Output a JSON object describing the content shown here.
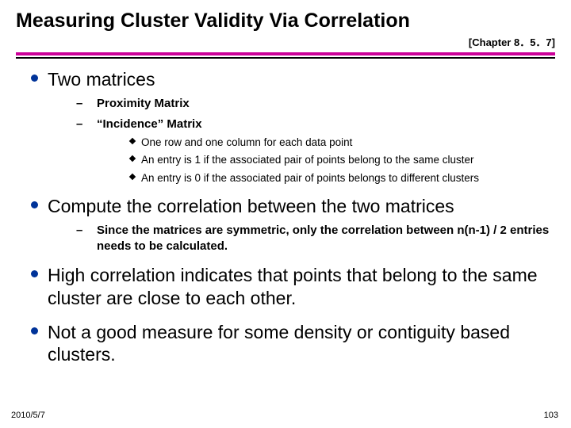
{
  "title": {
    "text": "Measuring Cluster Validity Via Correlation",
    "fontsize": 25
  },
  "chapter": {
    "text": "[Chapter 8．5．7]",
    "fontsize": 13
  },
  "rules": {
    "top_color": "#cc0099",
    "bottom_color": "#000000"
  },
  "bullets": {
    "level1_marker_color": "#003399",
    "items": [
      {
        "text": "Two matrices",
        "children": [
          {
            "text": "Proximity Matrix"
          },
          {
            "text": "“Incidence” Matrix",
            "children": [
              {
                "text": "One row and one column for each data point"
              },
              {
                "text": "An entry is 1 if the associated pair of points belong to the same cluster"
              },
              {
                "text": "An entry is 0 if the associated pair of points belongs to different clusters"
              }
            ]
          }
        ]
      },
      {
        "text": "Compute the correlation between the two matrices",
        "children": [
          {
            "text": "Since the matrices are symmetric, only the correlation between n(n-1) / 2 entries needs to be calculated."
          }
        ]
      },
      {
        "text": "High correlation indicates that points that belong to the same cluster are close to each other."
      },
      {
        "text": "Not a good measure for some density or contiguity based clusters."
      }
    ]
  },
  "footer": {
    "date": "2010/5/7",
    "page": "103"
  }
}
